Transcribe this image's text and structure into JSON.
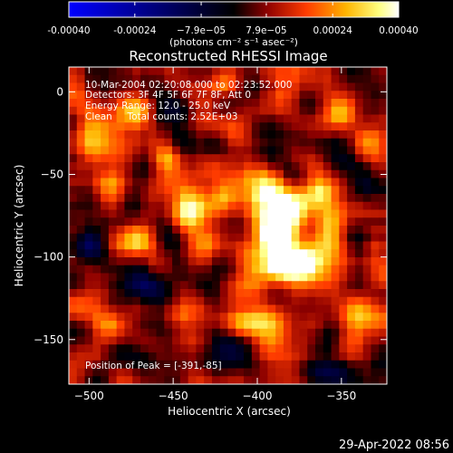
{
  "colorbar": {
    "tick_labels": [
      "-0.00040",
      "-0.00024",
      "−7.9e−05",
      "7.9e−05",
      "0.00024",
      "0.00040"
    ],
    "tick_values": [
      -0.0004,
      -0.00024,
      -7.9e-05,
      7.9e-05,
      0.00024,
      0.0004
    ],
    "range": [
      -0.0004,
      0.0004
    ],
    "units_label": "(photons cm⁻² s⁻¹ asec⁻²)",
    "colormap_stops": [
      "#0000ff",
      "#000000",
      "#8c0000",
      "#ff3c00",
      "#ffb400",
      "#ffff80",
      "#ffffff"
    ]
  },
  "chart_data": {
    "type": "heatmap",
    "title": "Reconstructed RHESSI Image",
    "xlabel": "Heliocentric X (arcsec)",
    "ylabel": "Heliocentric Y (arcsec)",
    "xlim": [
      -512,
      -323
    ],
    "ylim": [
      -177,
      15
    ],
    "x_ticks": [
      -500,
      -450,
      -400,
      -350
    ],
    "y_ticks": [
      0,
      -50,
      -100,
      -150
    ],
    "annotations": [
      "10-Mar-2004 02:20:08.000 to 02:23:52.000",
      "Detectors: 3F 4F 5F 6F 7F 8F, Att 0",
      "Energy Range: 12.0 - 25.0 keV",
      "Clean     Total counts: 2.52E+03"
    ],
    "peak_label": "Position of Peak = [-391,-85]",
    "peak_position": [
      -391,
      -85
    ],
    "sources": [
      {
        "x": -391,
        "y": -85,
        "sx": 10,
        "sy": 14,
        "amp": 1.0
      },
      {
        "x": -378,
        "y": -70,
        "sx": 9,
        "sy": 8,
        "amp": 0.75
      },
      {
        "x": -395,
        "y": -62,
        "sx": 9,
        "sy": 8,
        "amp": 0.72
      },
      {
        "x": -372,
        "y": -100,
        "sx": 10,
        "sy": 10,
        "amp": 0.78
      },
      {
        "x": -356,
        "y": -80,
        "sx": 7,
        "sy": 12,
        "amp": 0.62
      },
      {
        "x": -385,
        "y": -105,
        "sx": 9,
        "sy": 6,
        "amp": 0.7
      },
      {
        "x": -362,
        "y": -60,
        "sx": 6,
        "sy": 6,
        "amp": 0.55
      },
      {
        "x": -440,
        "y": -75,
        "sx": 8,
        "sy": 10,
        "amp": 0.55
      },
      {
        "x": -430,
        "y": -90,
        "sx": 7,
        "sy": 7,
        "amp": 0.5
      },
      {
        "x": -420,
        "y": -60,
        "sx": 6,
        "sy": 8,
        "amp": 0.45
      },
      {
        "x": -470,
        "y": -15,
        "sx": 8,
        "sy": 7,
        "amp": 0.55
      },
      {
        "x": -500,
        "y": -25,
        "sx": 6,
        "sy": 10,
        "amp": 0.5
      },
      {
        "x": -490,
        "y": -55,
        "sx": 8,
        "sy": 6,
        "amp": 0.48
      },
      {
        "x": -455,
        "y": -40,
        "sx": 6,
        "sy": 6,
        "amp": 0.42
      },
      {
        "x": -470,
        "y": -90,
        "sx": 7,
        "sy": 6,
        "amp": 0.38
      },
      {
        "x": -410,
        "y": -140,
        "sx": 9,
        "sy": 6,
        "amp": 0.48
      },
      {
        "x": -390,
        "y": -140,
        "sx": 8,
        "sy": 8,
        "amp": 0.5
      },
      {
        "x": -380,
        "y": -160,
        "sx": 9,
        "sy": 6,
        "amp": 0.42
      },
      {
        "x": -445,
        "y": -135,
        "sx": 6,
        "sy": 5,
        "amp": 0.36
      },
      {
        "x": -490,
        "y": -140,
        "sx": 8,
        "sy": 6,
        "amp": 0.32
      },
      {
        "x": -350,
        "y": -10,
        "sx": 6,
        "sy": 8,
        "amp": 0.38
      },
      {
        "x": -335,
        "y": -30,
        "sx": 6,
        "sy": 8,
        "amp": 0.36
      },
      {
        "x": -340,
        "y": -135,
        "sx": 7,
        "sy": 7,
        "amp": 0.4
      },
      {
        "x": -420,
        "y": 5,
        "sx": 6,
        "sy": 5,
        "amp": 0.3
      },
      {
        "x": -330,
        "y": -95,
        "sx": 5,
        "sy": 8,
        "amp": 0.3
      },
      {
        "x": -395,
        "y": -30,
        "sx": 6,
        "sy": 5,
        "amp": 0.25
      }
    ],
    "negative_regions": [
      {
        "x": -375,
        "y": -85,
        "sx": 7,
        "sy": 8,
        "amp": 0.4
      },
      {
        "x": -360,
        "y": -170,
        "sx": 10,
        "sy": 6,
        "amp": 0.5
      },
      {
        "x": -420,
        "y": -165,
        "sx": 10,
        "sy": 6,
        "amp": 0.35
      },
      {
        "x": -470,
        "y": -115,
        "sx": 9,
        "sy": 8,
        "amp": 0.35
      },
      {
        "x": -440,
        "y": -30,
        "sx": 8,
        "sy": 8,
        "amp": 0.3
      },
      {
        "x": -340,
        "y": -60,
        "sx": 7,
        "sy": 7,
        "amp": 0.3
      },
      {
        "x": -500,
        "y": -95,
        "sx": 7,
        "sy": 7,
        "amp": 0.3
      }
    ],
    "background_level": 0.18,
    "grid": false
  },
  "footer": {
    "timestamp": "29-Apr-2022 08:56"
  }
}
